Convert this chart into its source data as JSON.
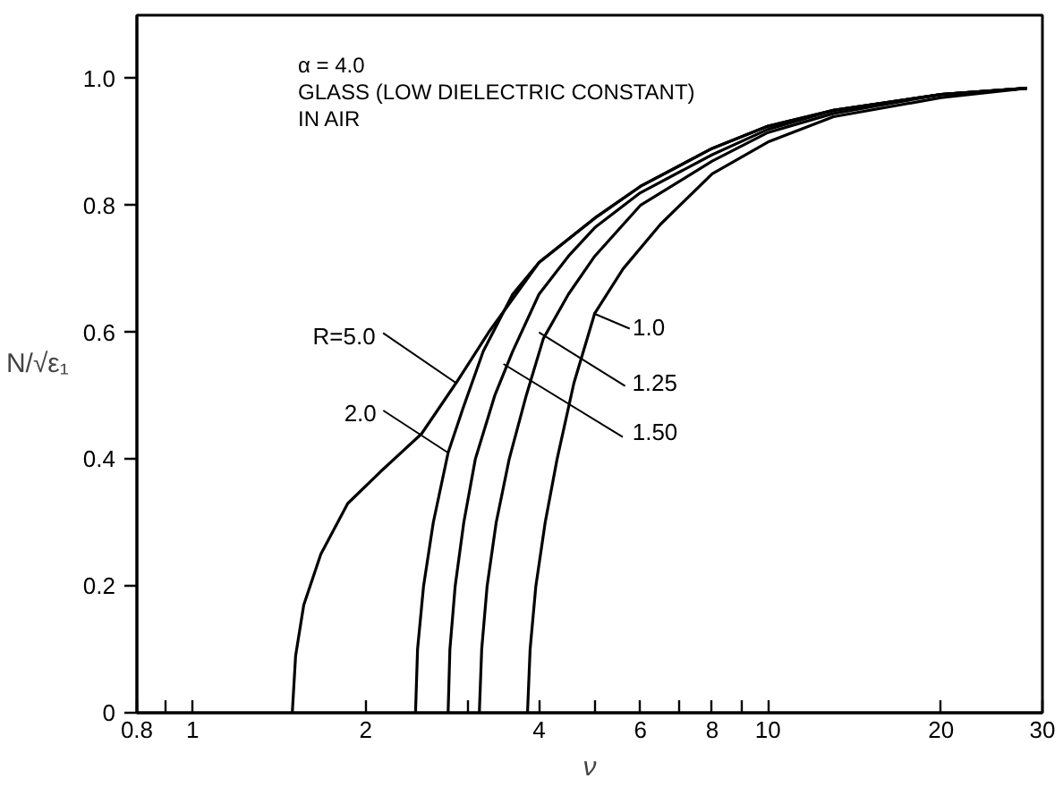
{
  "chart_data": {
    "type": "line",
    "xlabel": "ν",
    "ylabel": "N/√ε₁",
    "log": "x",
    "grid": false,
    "marker": "none",
    "line_style": "solid",
    "xlim": [
      0.8,
      30
    ],
    "ylim": [
      0,
      1.1
    ],
    "xticks": [
      0.8,
      {
        "value": 0.9,
        "label": null
      },
      1,
      2,
      {
        "value": 3,
        "label": null
      },
      4,
      {
        "value": 5,
        "label": null
      },
      6,
      {
        "value": 7,
        "label": null
      },
      8,
      {
        "value": 9,
        "label": null
      },
      10,
      20,
      30
    ],
    "yticks": [
      0,
      0.2,
      0.4,
      0.6,
      0.8,
      {
        "value": 1,
        "label": "1.0"
      }
    ],
    "series": [
      {
        "color": "#000000",
        "x": [
          1.49,
          1.51,
          1.56,
          1.67,
          1.86,
          2.12,
          2.5,
          2.87,
          3.27,
          4,
          5,
          6,
          8,
          10,
          13,
          20,
          28.2
        ],
        "values": [
          0,
          0.09,
          0.17,
          0.25,
          0.33,
          0.38,
          0.44,
          0.52,
          0.6,
          0.71,
          0.78,
          0.83,
          0.89,
          0.925,
          0.95,
          0.975,
          0.985
        ]
      },
      {
        "color": "#000000",
        "x": [
          2.44,
          2.46,
          2.52,
          2.62,
          2.78,
          2.95,
          3.2,
          3.6,
          4,
          5,
          6,
          8,
          10,
          13,
          20,
          28.2
        ],
        "values": [
          0,
          0.1,
          0.2,
          0.3,
          0.41,
          0.48,
          0.57,
          0.66,
          0.71,
          0.78,
          0.83,
          0.89,
          0.925,
          0.95,
          0.975,
          0.985
        ]
      },
      {
        "color": "#000000",
        "x": [
          2.78,
          2.8,
          2.86,
          2.96,
          3.1,
          3.35,
          3.6,
          4,
          4.5,
          5,
          6,
          8,
          10,
          13,
          20,
          28.2
        ],
        "values": [
          0,
          0.1,
          0.2,
          0.3,
          0.4,
          0.5,
          0.57,
          0.66,
          0.72,
          0.765,
          0.82,
          0.88,
          0.92,
          0.95,
          0.975,
          0.985
        ]
      },
      {
        "color": "#000000",
        "x": [
          3.15,
          3.18,
          3.25,
          3.37,
          3.55,
          3.8,
          4.07,
          4.5,
          5,
          6,
          8,
          10,
          13,
          20,
          28.2
        ],
        "values": [
          0,
          0.1,
          0.2,
          0.3,
          0.4,
          0.5,
          0.59,
          0.66,
          0.72,
          0.8,
          0.87,
          0.915,
          0.945,
          0.975,
          0.985
        ]
      },
      {
        "color": "#000000",
        "x": [
          3.82,
          3.86,
          3.95,
          4.1,
          4.3,
          4.6,
          5.0,
          5.6,
          6.5,
          8,
          10,
          13,
          20,
          28.2
        ],
        "values": [
          0,
          0.1,
          0.2,
          0.3,
          0.4,
          0.52,
          0.63,
          0.7,
          0.77,
          0.85,
          0.9,
          0.94,
          0.97,
          0.985
        ]
      }
    ],
    "annotations": [
      "α = 4.0",
      "GLASS (LOW DIELECTRIC CONSTANT)",
      "IN AIR",
      {
        "text": "R=5.0",
        "x": 2.87,
        "y": 0.52
      },
      {
        "text": "2.0",
        "x": 2.78,
        "y": 0.41
      },
      {
        "text": "1.50",
        "x": 3.47,
        "y": 0.55
      },
      {
        "text": "1.25",
        "x": 4.0,
        "y": 0.6
      },
      {
        "text": "1.0",
        "x": 4.97,
        "y": 0.63
      }
    ]
  }
}
